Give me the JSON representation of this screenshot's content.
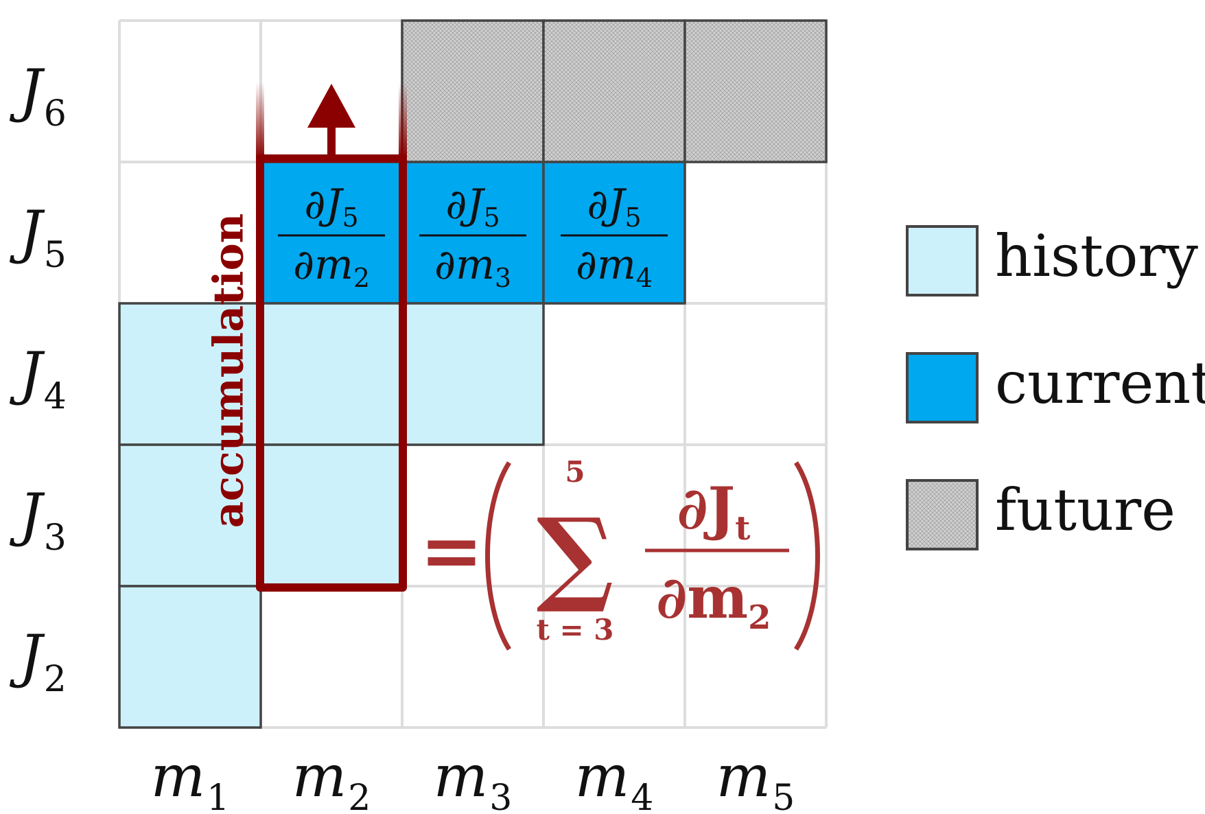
{
  "rows": [
    {
      "letter": "J",
      "sub": "6"
    },
    {
      "letter": "J",
      "sub": "5"
    },
    {
      "letter": "J",
      "sub": "4"
    },
    {
      "letter": "J",
      "sub": "3"
    },
    {
      "letter": "J",
      "sub": "2"
    }
  ],
  "columns": [
    {
      "letter": "m",
      "sub": "1"
    },
    {
      "letter": "m",
      "sub": "2"
    },
    {
      "letter": "m",
      "sub": "3"
    },
    {
      "letter": "m",
      "sub": "4"
    },
    {
      "letter": "m",
      "sub": "5"
    }
  ],
  "current_cells": [
    {
      "num": "∂J",
      "num_sub": "5",
      "den": "∂m",
      "den_sub": "2"
    },
    {
      "num": "∂J",
      "num_sub": "5",
      "den": "∂m",
      "den_sub": "3"
    },
    {
      "num": "∂J",
      "num_sub": "5",
      "den": "∂m",
      "den_sub": "4"
    }
  ],
  "accumulation_label": "accumulation",
  "formula": {
    "equals": "=",
    "sum_upper": "5",
    "sum_lower": "t = 3",
    "num": "∂J",
    "num_sub": "t",
    "den": "∂m",
    "den_sub": "2"
  },
  "legend": [
    {
      "label": "history",
      "color": "#cdf1fb"
    },
    {
      "label": "current",
      "color": "#00a8f0"
    },
    {
      "label": "future",
      "color": "#c8c8c8"
    }
  ],
  "colors": {
    "history": "#cdf1fb",
    "current": "#00a8f0",
    "future": "#c8c8c8",
    "accent": "#8b0000",
    "formula": "#a83232",
    "grid": "#dddddd",
    "border": "#444444"
  }
}
